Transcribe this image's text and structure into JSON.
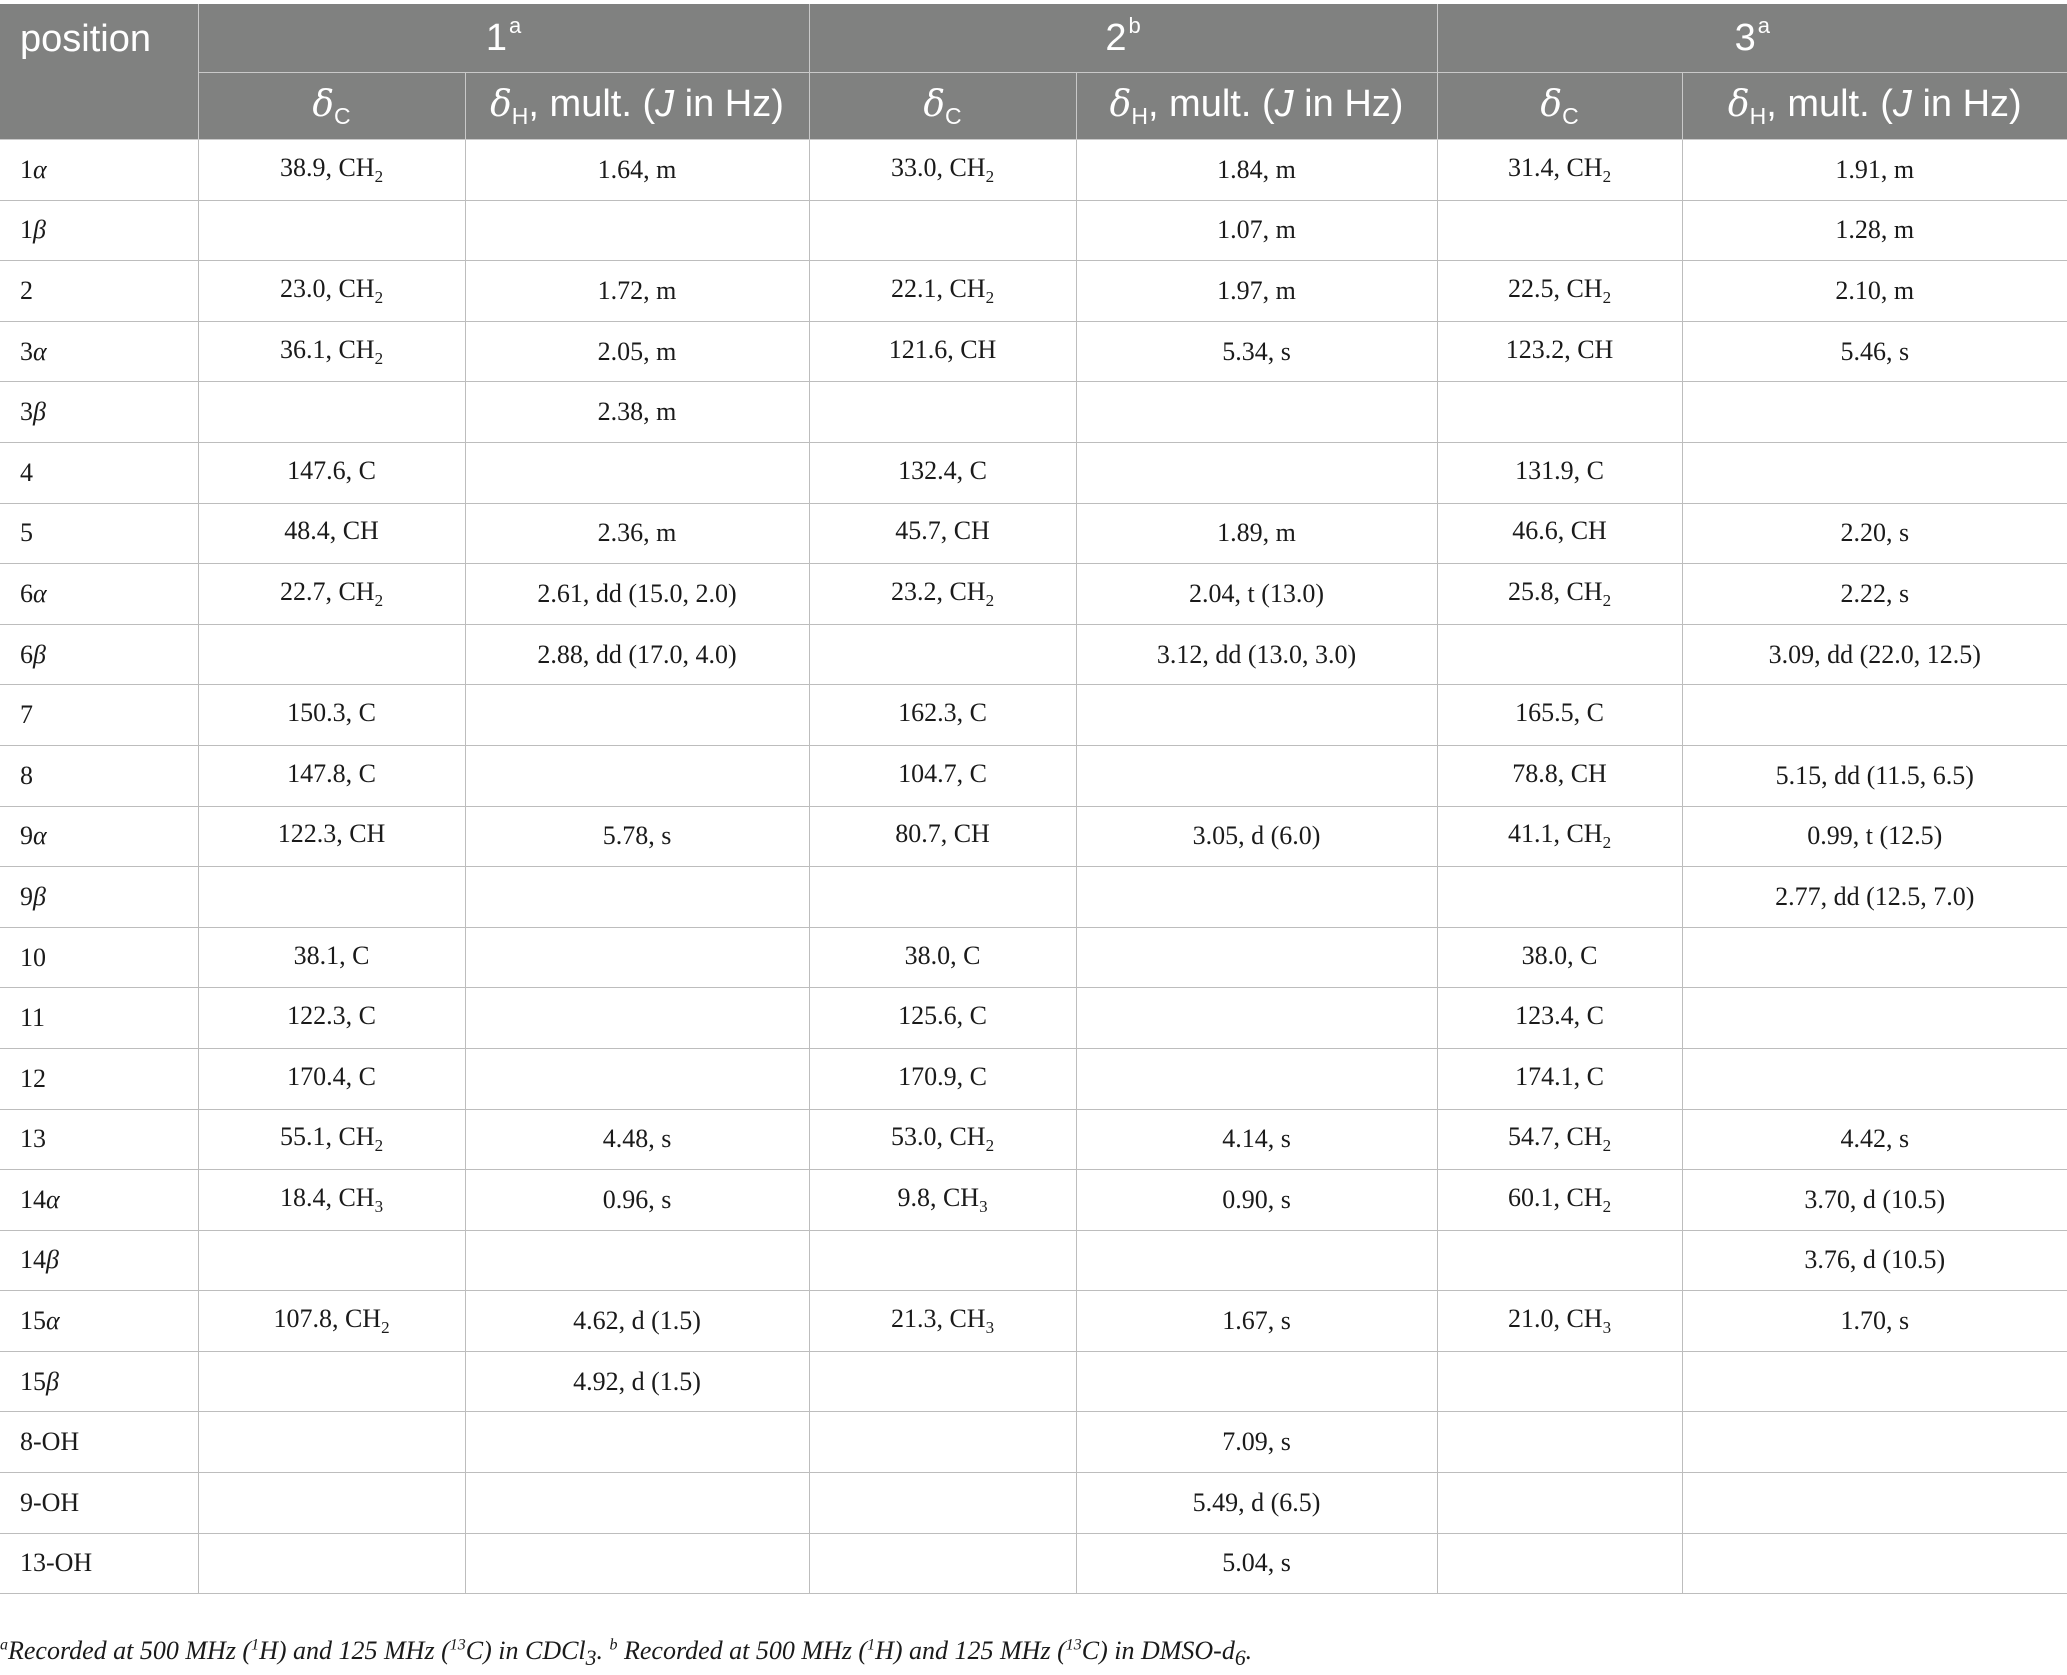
{
  "table": {
    "header": {
      "position": "position",
      "compounds": [
        {
          "label": "1",
          "note": "a"
        },
        {
          "label": "2",
          "note": "b"
        },
        {
          "label": "3",
          "note": "a"
        }
      ],
      "delta_c_symbol": "δ",
      "delta_c_sub": "C",
      "delta_h_symbol": "δ",
      "delta_h_sub": "H",
      "delta_h_rest_1": ", mult. (",
      "delta_h_j": "J",
      "delta_h_rest_2": " in Hz)"
    },
    "rows": [
      {
        "pos": "1α",
        "c1": "38.9, CH",
        "c1s": "2",
        "h1": "1.64, m",
        "c2": "33.0, CH",
        "c2s": "2",
        "h2": "1.84, m",
        "c3": "31.4, CH",
        "c3s": "2",
        "h3": "1.91, m"
      },
      {
        "pos": "1β",
        "c1": "",
        "c1s": "",
        "h1": "",
        "c2": "",
        "c2s": "",
        "h2": "1.07, m",
        "c3": "",
        "c3s": "",
        "h3": "1.28, m"
      },
      {
        "pos": "2",
        "c1": "23.0, CH",
        "c1s": "2",
        "h1": "1.72, m",
        "c2": "22.1, CH",
        "c2s": "2",
        "h2": "1.97, m",
        "c3": "22.5, CH",
        "c3s": "2",
        "h3": "2.10, m"
      },
      {
        "pos": "3α",
        "c1": "36.1, CH",
        "c1s": "2",
        "h1": "2.05, m",
        "c2": "121.6, CH",
        "c2s": "",
        "h2": "5.34, s",
        "c3": "123.2, CH",
        "c3s": "",
        "h3": "5.46, s"
      },
      {
        "pos": "3β",
        "c1": "",
        "c1s": "",
        "h1": "2.38, m",
        "c2": "",
        "c2s": "",
        "h2": "",
        "c3": "",
        "c3s": "",
        "h3": ""
      },
      {
        "pos": "4",
        "c1": "147.6, C",
        "c1s": "",
        "h1": "",
        "c2": "132.4, C",
        "c2s": "",
        "h2": "",
        "c3": "131.9, C",
        "c3s": "",
        "h3": ""
      },
      {
        "pos": "5",
        "c1": "48.4, CH",
        "c1s": "",
        "h1": "2.36, m",
        "c2": "45.7, CH",
        "c2s": "",
        "h2": "1.89, m",
        "c3": "46.6, CH",
        "c3s": "",
        "h3": "2.20, s"
      },
      {
        "pos": "6α",
        "c1": "22.7, CH",
        "c1s": "2",
        "h1": "2.61, dd (15.0, 2.0)",
        "c2": "23.2, CH",
        "c2s": "2",
        "h2": "2.04, t (13.0)",
        "c3": "25.8, CH",
        "c3s": "2",
        "h3": "2.22, s"
      },
      {
        "pos": "6β",
        "c1": "",
        "c1s": "",
        "h1": "2.88, dd (17.0, 4.0)",
        "c2": "",
        "c2s": "",
        "h2": "3.12, dd (13.0, 3.0)",
        "c3": "",
        "c3s": "",
        "h3": "3.09, dd (22.0, 12.5)"
      },
      {
        "pos": "7",
        "c1": "150.3, C",
        "c1s": "",
        "h1": "",
        "c2": "162.3, C",
        "c2s": "",
        "h2": "",
        "c3": "165.5, C",
        "c3s": "",
        "h3": ""
      },
      {
        "pos": "8",
        "c1": "147.8, C",
        "c1s": "",
        "h1": "",
        "c2": "104.7, C",
        "c2s": "",
        "h2": "",
        "c3": "78.8, CH",
        "c3s": "",
        "h3": "5.15, dd (11.5, 6.5)"
      },
      {
        "pos": "9α",
        "c1": "122.3, CH",
        "c1s": "",
        "h1": "5.78, s",
        "c2": "80.7, CH",
        "c2s": "",
        "h2": "3.05, d (6.0)",
        "c3": "41.1, CH",
        "c3s": "2",
        "h3": "0.99, t (12.5)"
      },
      {
        "pos": "9β",
        "c1": "",
        "c1s": "",
        "h1": "",
        "c2": "",
        "c2s": "",
        "h2": "",
        "c3": "",
        "c3s": "",
        "h3": "2.77, dd (12.5, 7.0)"
      },
      {
        "pos": "10",
        "c1": "38.1, C",
        "c1s": "",
        "h1": "",
        "c2": "38.0, C",
        "c2s": "",
        "h2": "",
        "c3": "38.0, C",
        "c3s": "",
        "h3": ""
      },
      {
        "pos": "11",
        "c1": "122.3, C",
        "c1s": "",
        "h1": "",
        "c2": "125.6, C",
        "c2s": "",
        "h2": "",
        "c3": "123.4, C",
        "c3s": "",
        "h3": ""
      },
      {
        "pos": "12",
        "c1": "170.4, C",
        "c1s": "",
        "h1": "",
        "c2": "170.9, C",
        "c2s": "",
        "h2": "",
        "c3": "174.1, C",
        "c3s": "",
        "h3": ""
      },
      {
        "pos": "13",
        "c1": "55.1, CH",
        "c1s": "2",
        "h1": "4.48, s",
        "c2": "53.0, CH",
        "c2s": "2",
        "h2": "4.14, s",
        "c3": "54.7, CH",
        "c3s": "2",
        "h3": "4.42, s"
      },
      {
        "pos": "14α",
        "c1": "18.4, CH",
        "c1s": "3",
        "h1": "0.96, s",
        "c2": "9.8, CH",
        "c2s": "3",
        "h2": "0.90, s",
        "c3": "60.1, CH",
        "c3s": "2",
        "h3": "3.70, d (10.5)"
      },
      {
        "pos": "14β",
        "c1": "",
        "c1s": "",
        "h1": "",
        "c2": "",
        "c2s": "",
        "h2": "",
        "c3": "",
        "c3s": "",
        "h3": "3.76, d (10.5)"
      },
      {
        "pos": "15α",
        "c1": "107.8, CH",
        "c1s": "2",
        "h1": "4.62, d (1.5)",
        "c2": "21.3, CH",
        "c2s": "3",
        "h2": "1.67, s",
        "c3": "21.0, CH",
        "c3s": "3",
        "h3": "1.70, s"
      },
      {
        "pos": "15β",
        "c1": "",
        "c1s": "",
        "h1": "4.92, d (1.5)",
        "c2": "",
        "c2s": "",
        "h2": "",
        "c3": "",
        "c3s": "",
        "h3": ""
      },
      {
        "pos": "8-OH",
        "c1": "",
        "c1s": "",
        "h1": "",
        "c2": "",
        "c2s": "",
        "h2": "7.09, s",
        "c3": "",
        "c3s": "",
        "h3": ""
      },
      {
        "pos": "9-OH",
        "c1": "",
        "c1s": "",
        "h1": "",
        "c2": "",
        "c2s": "",
        "h2": "5.49, d (6.5)",
        "c3": "",
        "c3s": "",
        "h3": ""
      },
      {
        "pos": "13-OH",
        "c1": "",
        "c1s": "",
        "h1": "",
        "c2": "",
        "c2s": "",
        "h2": "5.04, s",
        "c3": "",
        "c3s": "",
        "h3": ""
      }
    ]
  },
  "footnote": {
    "a_mark": "a",
    "a_text_1": "Recorded at 500 MHz (",
    "a_sup_h": "1",
    "a_text_2": "H) and 125 MHz (",
    "a_sup_c": "13",
    "a_text_3": "C) in CDCl",
    "a_sub": "3",
    "a_text_4": ". ",
    "b_mark": "b",
    "b_text_1": " Recorded at 500 MHz (",
    "b_sup_h": "1",
    "b_text_2": "H) and 125 MHz (",
    "b_sup_c": "13",
    "b_text_3": "C) in DMSO-d",
    "b_sub": "6",
    "b_text_4": "."
  }
}
